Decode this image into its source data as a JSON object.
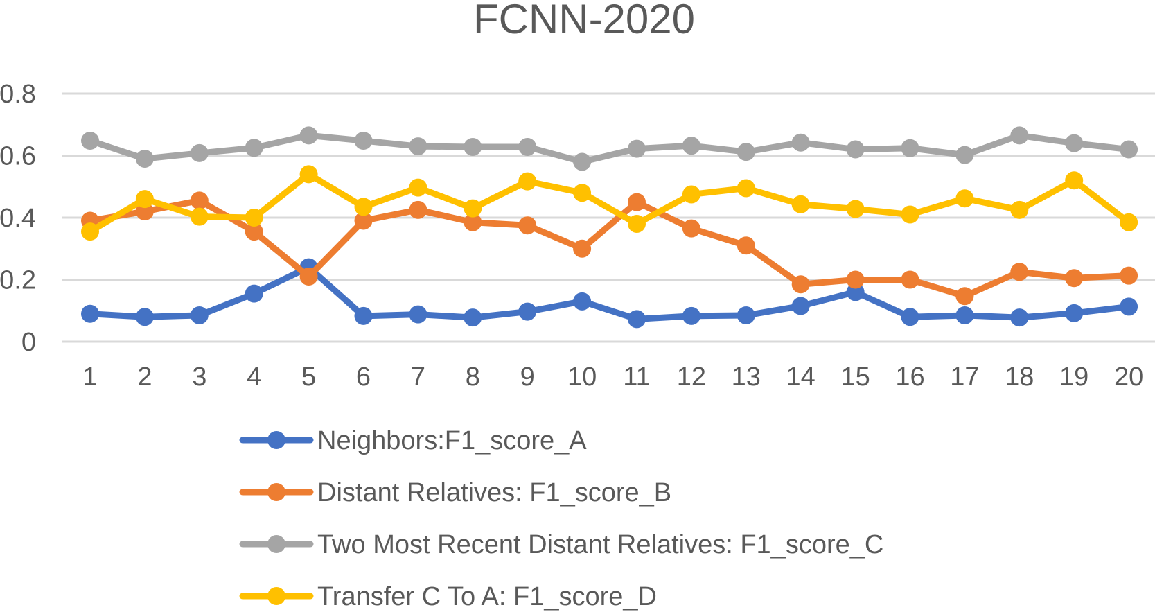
{
  "chart_data": {
    "type": "line",
    "title": "FCNN-2020",
    "xlabel": "",
    "ylabel": "",
    "x": [
      "1",
      "2",
      "3",
      "4",
      "5",
      "6",
      "7",
      "8",
      "9",
      "10",
      "11",
      "12",
      "13",
      "14",
      "15",
      "16",
      "17",
      "18",
      "19",
      "20"
    ],
    "yticks": [
      "0",
      "0.2",
      "0.4",
      "0.6",
      "0.8"
    ],
    "ylim": [
      0,
      0.8
    ],
    "grid": true,
    "legend_position": "bottom",
    "series": [
      {
        "name": "Neighbors:F1_score_A",
        "color": "#4472c4",
        "values": [
          0.09,
          0.08,
          0.085,
          0.155,
          0.24,
          0.083,
          0.088,
          0.078,
          0.097,
          0.13,
          0.073,
          0.083,
          0.085,
          0.115,
          0.16,
          0.08,
          0.085,
          0.078,
          0.092,
          0.113
        ]
      },
      {
        "name": "Distant Relatives: F1_score_B",
        "color": "#ed7d31",
        "values": [
          0.39,
          0.42,
          0.455,
          0.355,
          0.21,
          0.39,
          0.425,
          0.385,
          0.375,
          0.3,
          0.45,
          0.365,
          0.31,
          0.185,
          0.2,
          0.2,
          0.147,
          0.225,
          0.205,
          0.213
        ]
      },
      {
        "name": "Two Most Recent Distant Relatives: F1_score_C",
        "color": "#a5a5a5",
        "values": [
          0.648,
          0.59,
          0.608,
          0.625,
          0.665,
          0.648,
          0.63,
          0.628,
          0.628,
          0.58,
          0.622,
          0.632,
          0.612,
          0.642,
          0.62,
          0.624,
          0.602,
          0.665,
          0.64,
          0.62
        ]
      },
      {
        "name": "Transfer C To A: F1_score_D",
        "color": "#ffc000",
        "values": [
          0.355,
          0.46,
          0.403,
          0.4,
          0.54,
          0.435,
          0.497,
          0.43,
          0.517,
          0.48,
          0.38,
          0.475,
          0.495,
          0.443,
          0.428,
          0.41,
          0.462,
          0.425,
          0.52,
          0.385
        ]
      }
    ]
  }
}
